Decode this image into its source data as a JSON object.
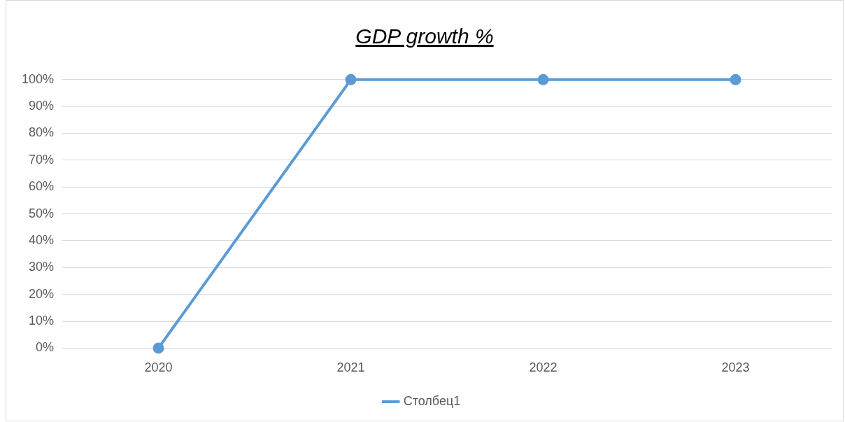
{
  "chart_data": {
    "type": "line",
    "title": "GDP growth %",
    "categories": [
      "2020",
      "2021",
      "2022",
      "2023"
    ],
    "series": [
      {
        "name": "Столбец1",
        "color": "#5b9bd5",
        "values": [
          0,
          100,
          100,
          100
        ]
      }
    ],
    "ylim": [
      0,
      100
    ],
    "yticks": [
      {
        "value": 0,
        "label": "0%"
      },
      {
        "value": 10,
        "label": "10%"
      },
      {
        "value": 20,
        "label": "20%"
      },
      {
        "value": 30,
        "label": "30%"
      },
      {
        "value": 40,
        "label": "40%"
      },
      {
        "value": 50,
        "label": "50%"
      },
      {
        "value": 60,
        "label": "60%"
      },
      {
        "value": 70,
        "label": "70%"
      },
      {
        "value": 80,
        "label": "80%"
      },
      {
        "value": 90,
        "label": "90%"
      },
      {
        "value": 100,
        "label": "100%"
      }
    ],
    "grid": "y",
    "legend": "bottom",
    "marker": "circle",
    "line_style": "solid"
  }
}
